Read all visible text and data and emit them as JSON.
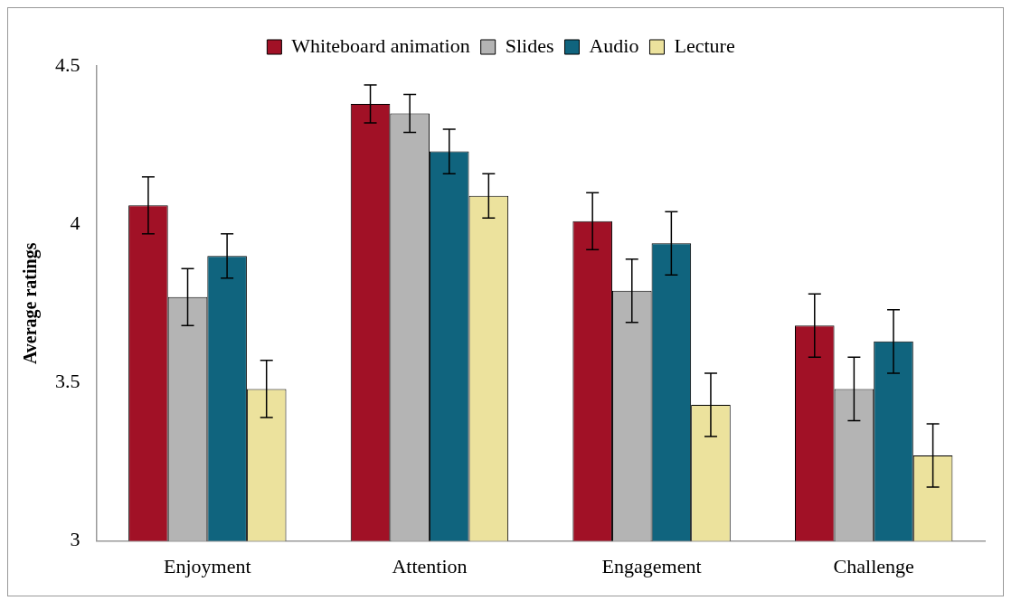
{
  "chart_data": {
    "type": "bar",
    "ylabel": "Average ratings",
    "categories": [
      "Enjoyment",
      "Attention",
      "Engagement",
      "Challenge"
    ],
    "series": [
      {
        "name": "Whiteboard animation",
        "color": "#a11126",
        "values": [
          4.06,
          4.38,
          4.01,
          3.68
        ],
        "errors": [
          0.09,
          0.06,
          0.09,
          0.1
        ]
      },
      {
        "name": "Slides",
        "color": "#b4b4b4",
        "values": [
          3.77,
          4.35,
          3.79,
          3.48
        ],
        "errors": [
          0.09,
          0.06,
          0.1,
          0.1
        ]
      },
      {
        "name": "Audio",
        "color": "#10647e",
        "values": [
          3.9,
          4.23,
          3.94,
          3.63
        ],
        "errors": [
          0.07,
          0.07,
          0.1,
          0.1
        ]
      },
      {
        "name": "Lecture",
        "color": "#ece29d",
        "values": [
          3.48,
          4.09,
          3.43,
          3.27
        ],
        "errors": [
          0.09,
          0.07,
          0.1,
          0.1
        ]
      }
    ],
    "ylim": [
      3,
      4.5
    ],
    "yticks": [
      3,
      3.5,
      4,
      4.5
    ],
    "grid": false,
    "legend": "top"
  }
}
